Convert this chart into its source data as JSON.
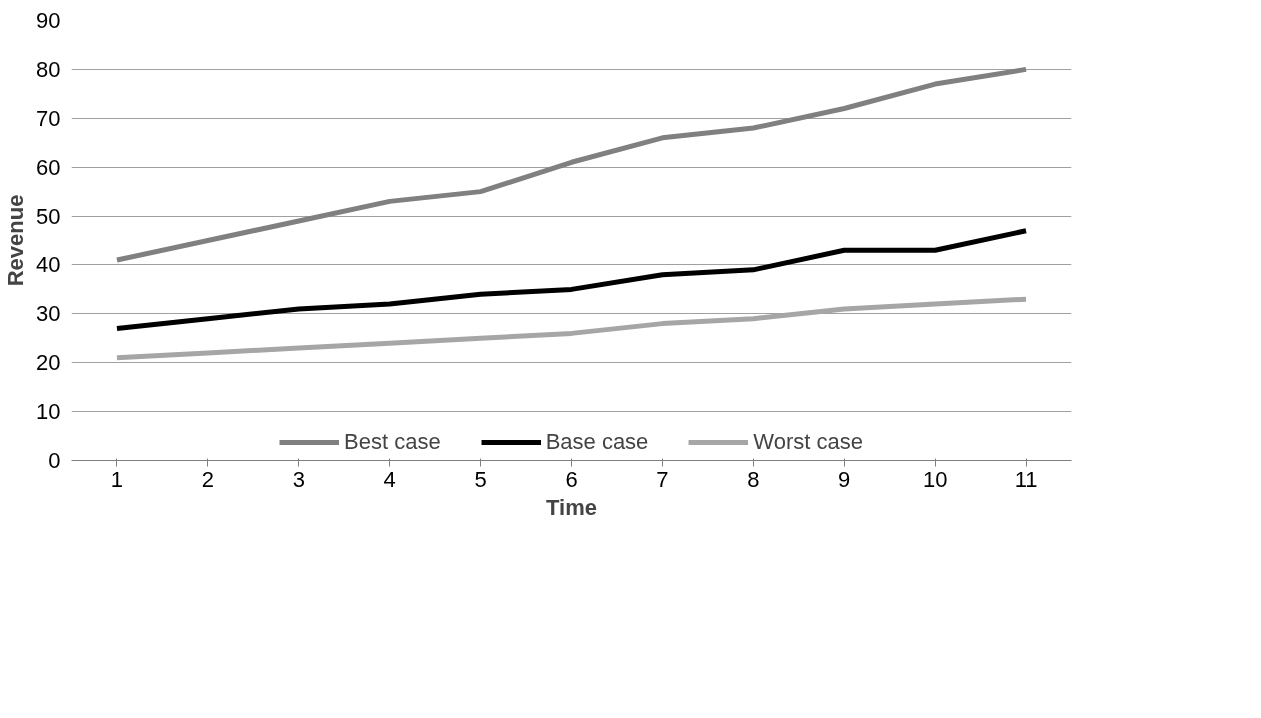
{
  "chart_data": {
    "type": "line",
    "xlabel": "Time",
    "ylabel": "Revenue",
    "categories": [
      "1",
      "2",
      "3",
      "4",
      "5",
      "6",
      "7",
      "8",
      "9",
      "10",
      "11"
    ],
    "series": [
      {
        "name": "Best case",
        "color": "#808080",
        "values": [
          41,
          45,
          49,
          53,
          55,
          61,
          66,
          68,
          72,
          77,
          80
        ]
      },
      {
        "name": "Base case",
        "color": "#000000",
        "values": [
          27,
          29,
          31,
          32,
          34,
          35,
          38,
          39,
          43,
          43,
          47
        ]
      },
      {
        "name": "Worst case",
        "color": "#a6a6a6",
        "values": [
          21,
          22,
          23,
          24,
          25,
          26,
          28,
          29,
          31,
          32,
          33
        ]
      }
    ],
    "ylim": [
      0,
      90
    ],
    "yticks": [
      0,
      10,
      20,
      30,
      40,
      50,
      60,
      70,
      80,
      90
    ],
    "grid": "y",
    "legend": "bottom",
    "marker": "none",
    "line_style": "solid"
  }
}
